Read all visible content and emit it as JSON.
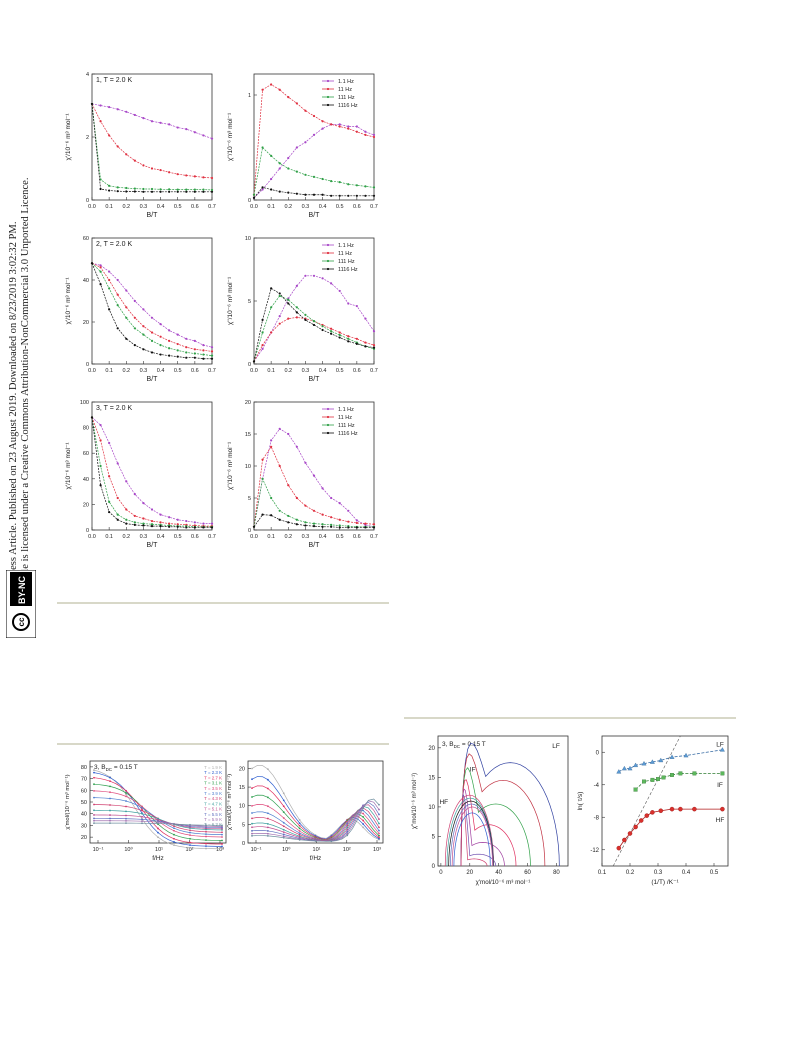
{
  "sidebar": {
    "line1": "Open Access Article. Published on 23 August 2019. Downloaded on 8/23/2019 3:02:32 PM.",
    "line2": "This article is licensed under a Creative Commons Attribution-NonCommercial 3.0 Unported Licence.",
    "badge_cc": "cc",
    "badge_text": "BY-NC"
  },
  "legend_freq": [
    "1.1 Hz",
    "11 Hz",
    "111 Hz",
    "1116 Hz"
  ],
  "legend_temp": [
    "T = 1.9 K",
    "T = 2.3 K",
    "T = 2.7 K",
    "T = 3.1 K",
    "T = 3.5 K",
    "T = 3.9 K",
    "T = 4.3 K",
    "T = 4.7 K",
    "T = 5.1 K",
    "T = 5.5 K",
    "T = 5.9 K",
    "T = 6.3 K"
  ],
  "colors": {
    "f11": "#a848c8",
    "f11b": "#e03040",
    "f111": "#30a048",
    "f1116": "#101010",
    "temps": [
      "#b0b0b0",
      "#3060d0",
      "#e03060",
      "#30a050",
      "#e05080",
      "#5080d0",
      "#d04070",
      "#40a0a0",
      "#c05090",
      "#6070c0",
      "#a070b0",
      "#7090a0"
    ],
    "rule": "#d8d8c8"
  },
  "chart_data": [
    {
      "type": "line",
      "title": "1, T = 2.0 K",
      "xlabel": "B/T",
      "ylabel": "χ'/10⁻⁶ m³ mol⁻¹",
      "xlim": [
        0,
        0.7
      ],
      "ylim": [
        0,
        4
      ],
      "xticks": [
        "0.0",
        "0.1",
        "0.2",
        "0.3",
        "0.4",
        "0.5",
        "0.6",
        "0.7"
      ],
      "yticks": [
        "0",
        "2",
        "4"
      ],
      "x": [
        0,
        0.05,
        0.1,
        0.15,
        0.2,
        0.25,
        0.3,
        0.35,
        0.4,
        0.45,
        0.5,
        0.55,
        0.6,
        0.65,
        0.7
      ],
      "series": [
        {
          "name": "1.1 Hz",
          "values": [
            3.05,
            3.0,
            2.95,
            2.88,
            2.8,
            2.7,
            2.6,
            2.5,
            2.45,
            2.4,
            2.3,
            2.25,
            2.15,
            2.05,
            1.95
          ]
        },
        {
          "name": "11 Hz",
          "values": [
            3.05,
            2.5,
            2.05,
            1.7,
            1.45,
            1.25,
            1.1,
            1.0,
            0.95,
            0.88,
            0.82,
            0.78,
            0.75,
            0.72,
            0.7
          ]
        },
        {
          "name": "111 Hz",
          "values": [
            3.05,
            0.65,
            0.45,
            0.4,
            0.38,
            0.36,
            0.35,
            0.35,
            0.34,
            0.34,
            0.33,
            0.33,
            0.33,
            0.33,
            0.32
          ]
        },
        {
          "name": "1116 Hz",
          "values": [
            3.05,
            0.35,
            0.3,
            0.28,
            0.27,
            0.27,
            0.26,
            0.26,
            0.26,
            0.26,
            0.26,
            0.26,
            0.26,
            0.26,
            0.26
          ]
        }
      ]
    },
    {
      "type": "line",
      "title": "",
      "xlabel": "B/T",
      "ylabel": "χ''/10⁻⁶ m³ mol⁻¹",
      "xlim": [
        0,
        0.7
      ],
      "ylim": [
        0,
        1.2
      ],
      "xticks": [
        "0.0",
        "0.1",
        "0.2",
        "0.3",
        "0.4",
        "0.5",
        "0.6",
        "0.7"
      ],
      "yticks": [
        "0",
        "1"
      ],
      "x": [
        0,
        0.05,
        0.1,
        0.15,
        0.2,
        0.25,
        0.3,
        0.35,
        0.4,
        0.45,
        0.5,
        0.55,
        0.6,
        0.65,
        0.7
      ],
      "series": [
        {
          "name": "1.1 Hz",
          "values": [
            0.02,
            0.1,
            0.2,
            0.3,
            0.4,
            0.5,
            0.55,
            0.62,
            0.68,
            0.72,
            0.72,
            0.7,
            0.7,
            0.65,
            0.62
          ]
        },
        {
          "name": "11 Hz",
          "values": [
            0.05,
            1.05,
            1.1,
            1.05,
            0.98,
            0.92,
            0.85,
            0.8,
            0.75,
            0.72,
            0.7,
            0.68,
            0.65,
            0.62,
            0.6
          ]
        },
        {
          "name": "111 Hz",
          "values": [
            0.05,
            0.5,
            0.42,
            0.35,
            0.3,
            0.27,
            0.24,
            0.22,
            0.2,
            0.18,
            0.17,
            0.15,
            0.14,
            0.13,
            0.12
          ]
        },
        {
          "name": "1116 Hz",
          "values": [
            0.02,
            0.12,
            0.1,
            0.08,
            0.07,
            0.06,
            0.05,
            0.05,
            0.05,
            0.04,
            0.04,
            0.04,
            0.04,
            0.04,
            0.04
          ]
        }
      ]
    },
    {
      "type": "line",
      "title": "2, T = 2.0 K",
      "xlabel": "B/T",
      "ylabel": "χ'/10⁻⁶ m³ mol⁻¹",
      "xlim": [
        0,
        0.7
      ],
      "ylim": [
        0,
        60
      ],
      "xticks": [
        "0.0",
        "0.1",
        "0.2",
        "0.3",
        "0.4",
        "0.5",
        "0.6",
        "0.7"
      ],
      "yticks": [
        "0",
        "20",
        "40",
        "60"
      ],
      "x": [
        0,
        0.05,
        0.1,
        0.15,
        0.2,
        0.25,
        0.3,
        0.35,
        0.4,
        0.45,
        0.5,
        0.55,
        0.6,
        0.65,
        0.7
      ],
      "series": [
        {
          "name": "1.1 Hz",
          "values": [
            48,
            47,
            44,
            40,
            35,
            30,
            26,
            22,
            19,
            16,
            14,
            12,
            11,
            9,
            8
          ]
        },
        {
          "name": "11 Hz",
          "values": [
            48,
            46,
            40,
            33,
            27,
            22,
            18,
            15,
            13,
            11,
            9.5,
            8,
            7,
            6.5,
            6
          ]
        },
        {
          "name": "111 Hz",
          "values": [
            48,
            44,
            36,
            28,
            22,
            17,
            14,
            11,
            9,
            7.5,
            6.5,
            5.5,
            5,
            4.5,
            4
          ]
        },
        {
          "name": "1116 Hz",
          "values": [
            48,
            38,
            26,
            17,
            12,
            9,
            7,
            5.5,
            4.5,
            4,
            3.5,
            3,
            3,
            2.5,
            2.5
          ]
        }
      ]
    },
    {
      "type": "line",
      "title": "",
      "xlabel": "B/T",
      "ylabel": "χ''/10⁻⁶ m³ mol⁻¹",
      "xlim": [
        0,
        0.7
      ],
      "ylim": [
        0,
        10
      ],
      "xticks": [
        "0.0",
        "0.1",
        "0.2",
        "0.3",
        "0.4",
        "0.5",
        "0.6",
        "0.7"
      ],
      "yticks": [
        "0",
        "5",
        "10"
      ],
      "x": [
        0,
        0.05,
        0.1,
        0.15,
        0.2,
        0.25,
        0.3,
        0.35,
        0.4,
        0.45,
        0.5,
        0.55,
        0.6,
        0.65,
        0.7
      ],
      "series": [
        {
          "name": "1.1 Hz",
          "values": [
            0.2,
            1.2,
            2.5,
            3.8,
            5.2,
            6.2,
            7.0,
            7.0,
            6.8,
            6.4,
            5.8,
            4.8,
            4.6,
            3.6,
            2.6
          ]
        },
        {
          "name": "11 Hz",
          "values": [
            0.2,
            1.5,
            2.5,
            3.2,
            3.6,
            3.7,
            3.6,
            3.4,
            3.1,
            2.8,
            2.5,
            2.2,
            2.0,
            1.7,
            1.5
          ]
        },
        {
          "name": "111 Hz",
          "values": [
            0.2,
            2.5,
            4.5,
            5.4,
            5.1,
            4.5,
            3.9,
            3.4,
            3.0,
            2.6,
            2.3,
            2.0,
            1.7,
            1.4,
            1.2
          ]
        },
        {
          "name": "1116 Hz",
          "values": [
            0.2,
            3.5,
            6.0,
            5.6,
            4.8,
            4.1,
            3.5,
            3.1,
            2.7,
            2.4,
            2.1,
            1.8,
            1.6,
            1.4,
            1.3
          ]
        }
      ]
    },
    {
      "type": "line",
      "title": "3, T = 2.0 K",
      "xlabel": "B/T",
      "ylabel": "χ'/10⁻⁶ m³ mol⁻¹",
      "xlim": [
        0,
        0.7
      ],
      "ylim": [
        0,
        100
      ],
      "xticks": [
        "0.0",
        "0.1",
        "0.2",
        "0.3",
        "0.4",
        "0.5",
        "0.6",
        "0.7"
      ],
      "yticks": [
        "0",
        "20",
        "40",
        "60",
        "80",
        "100"
      ],
      "x": [
        0,
        0.05,
        0.1,
        0.15,
        0.2,
        0.25,
        0.3,
        0.35,
        0.4,
        0.45,
        0.5,
        0.55,
        0.6,
        0.65,
        0.7
      ],
      "series": [
        {
          "name": "1.1 Hz",
          "values": [
            88,
            82,
            68,
            52,
            38,
            28,
            21,
            16,
            12,
            10,
            8,
            7,
            6,
            5,
            5
          ]
        },
        {
          "name": "11 Hz",
          "values": [
            88,
            70,
            42,
            25,
            16,
            11,
            9,
            7,
            6,
            5,
            4.5,
            4,
            3.5,
            3,
            3
          ]
        },
        {
          "name": "111 Hz",
          "values": [
            88,
            50,
            22,
            12,
            8,
            6,
            5,
            4.5,
            4,
            3.5,
            3,
            3,
            2.5,
            2.5,
            2.5
          ]
        },
        {
          "name": "1116 Hz",
          "values": [
            88,
            35,
            14,
            8,
            5,
            4,
            3.5,
            3,
            3,
            2.5,
            2.5,
            2,
            2,
            2,
            2
          ]
        }
      ]
    },
    {
      "type": "line",
      "title": "",
      "xlabel": "B/T",
      "ylabel": "χ''/10⁻⁶ m³ mol⁻¹",
      "xlim": [
        0,
        0.7
      ],
      "ylim": [
        0,
        20
      ],
      "xticks": [
        "0.0",
        "0.1",
        "0.2",
        "0.3",
        "0.4",
        "0.5",
        "0.6",
        "0.7"
      ],
      "yticks": [
        "0",
        "5",
        "10",
        "15",
        "20"
      ],
      "x": [
        0,
        0.05,
        0.1,
        0.15,
        0.2,
        0.25,
        0.3,
        0.35,
        0.4,
        0.45,
        0.5,
        0.55,
        0.6,
        0.65,
        0.7
      ],
      "series": [
        {
          "name": "1.1 Hz",
          "values": [
            0.5,
            8,
            14,
            15.8,
            15,
            13,
            10.5,
            8.5,
            6.5,
            5,
            4.2,
            3,
            1.5,
            0.8,
            0.5
          ]
        },
        {
          "name": "11 Hz",
          "values": [
            0.5,
            11,
            13,
            10,
            7,
            5,
            3.8,
            3,
            2.4,
            2,
            1.6,
            1.3,
            1.1,
            1,
            0.9
          ]
        },
        {
          "name": "111 Hz",
          "values": [
            0.5,
            8,
            5,
            3,
            2.2,
            1.6,
            1.2,
            1,
            0.9,
            0.8,
            0.7,
            0.6,
            0.5,
            0.5,
            0.5
          ]
        },
        {
          "name": "1116 Hz",
          "values": [
            0.5,
            2.4,
            2.3,
            1.6,
            1.2,
            0.9,
            0.7,
            0.6,
            0.5,
            0.5,
            0.4,
            0.4,
            0.4,
            0.4,
            0.4
          ]
        }
      ]
    }
  ],
  "chart_b": {
    "left_title": "3, B",
    "left_title_sub": "DC",
    "left_title_rest": " = 0.15 T",
    "left_ylabel": "χ'mol/(10⁻⁶ m³ mol⁻¹)",
    "right_ylabel": "χ''mol/(10⁻⁶ m³ mol⁻¹)",
    "xlabel": "f/Hz",
    "xticks": [
      "10⁻¹",
      "10⁰",
      "10¹",
      "10²",
      "10³"
    ],
    "left_yticks": [
      "20",
      "30",
      "40",
      "50",
      "60",
      "70",
      "80"
    ],
    "right_yticks": [
      "0",
      "5",
      "10",
      "15",
      "20"
    ]
  },
  "chart_c": {
    "title": "3, B",
    "title_sub": "DC",
    "title_rest": " = 0.15 T",
    "ylabel": "χ''mol/10⁻⁶ m³ mol⁻¹)",
    "xlabel": "χ'mol/10⁻⁶ m³ mol⁻¹",
    "xticks": [
      "0",
      "20",
      "40",
      "60",
      "80"
    ],
    "yticks": [
      "0",
      "5",
      "10",
      "15",
      "20"
    ],
    "labels": [
      "LF",
      "IF",
      "HF"
    ]
  },
  "chart_d": {
    "ylabel": "ln( τ/s)",
    "xlabel": "(1/T) /K⁻¹",
    "xticks": [
      "0.1",
      "0.2",
      "0.3",
      "0.4",
      "0.5"
    ],
    "yticks": [
      "0",
      "-4",
      "-8",
      "-12"
    ],
    "labels": [
      "LF",
      "IF",
      "HF"
    ],
    "series": [
      {
        "name": "LF",
        "x": [
          0.16,
          0.18,
          0.2,
          0.22,
          0.25,
          0.28,
          0.31,
          0.35,
          0.4,
          0.53
        ],
        "y": [
          -2.4,
          -2.0,
          -2.0,
          -1.6,
          -1.4,
          -1.2,
          -1.0,
          -0.6,
          -0.4,
          0.3
        ]
      },
      {
        "name": "IF",
        "x": [
          0.22,
          0.25,
          0.28,
          0.3,
          0.32,
          0.35,
          0.38,
          0.43,
          0.53
        ],
        "y": [
          -4.6,
          -3.6,
          -3.4,
          -3.3,
          -3.1,
          -2.8,
          -2.6,
          -2.6,
          -2.6
        ]
      },
      {
        "name": "HF",
        "x": [
          0.16,
          0.18,
          0.2,
          0.22,
          0.24,
          0.26,
          0.28,
          0.31,
          0.35,
          0.38,
          0.43,
          0.53
        ],
        "y": [
          -11.8,
          -10.8,
          -10.0,
          -9.2,
          -8.4,
          -7.8,
          -7.4,
          -7.2,
          -7.0,
          -7.0,
          -7.0,
          -7.0
        ]
      }
    ]
  }
}
